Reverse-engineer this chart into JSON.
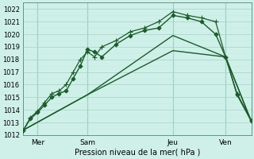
{
  "xlabel": "Pression niveau de la mer( hPa )",
  "background_color": "#cff0e8",
  "grid_color_major": "#aad8cc",
  "grid_color_minor": "#c4ece4",
  "line_color": "#1a5c2a",
  "vline_color": "#6aaa99",
  "xlim": [
    0,
    16
  ],
  "ylim": [
    1012,
    1022.5
  ],
  "yticks": [
    1012,
    1013,
    1014,
    1015,
    1016,
    1017,
    1018,
    1019,
    1020,
    1021,
    1022
  ],
  "xtick_labels": [
    "Mer",
    "Sam",
    "Jeu",
    "Ven"
  ],
  "xtick_positions": [
    1.0,
    4.5,
    10.5,
    14.2
  ],
  "vlines": [
    1.0,
    4.5,
    10.5,
    14.2
  ],
  "series": [
    {
      "x": [
        0,
        0.5,
        1.0,
        1.5,
        2.0,
        2.5,
        3.0,
        3.5,
        4.0,
        4.5,
        5.0,
        5.5,
        6.5,
        7.5,
        8.5,
        9.5,
        10.5,
        11.5,
        12.5,
        13.5,
        14.2,
        15.0,
        16.0
      ],
      "y": [
        1012.4,
        1013.3,
        1013.8,
        1014.4,
        1015.0,
        1015.3,
        1015.5,
        1016.5,
        1017.5,
        1018.8,
        1018.6,
        1018.2,
        1019.2,
        1019.9,
        1020.3,
        1020.5,
        1021.5,
        1021.3,
        1021.0,
        1020.0,
        1018.2,
        1015.2,
        1013.1
      ],
      "marker": "D",
      "markersize": 2.5,
      "lw": 1.0
    },
    {
      "x": [
        0,
        0.5,
        1.0,
        1.5,
        2.0,
        2.5,
        3.0,
        3.5,
        4.0,
        4.5,
        5.0,
        5.5,
        6.5,
        7.5,
        8.5,
        9.5,
        10.5,
        11.5,
        12.5,
        13.5,
        14.2,
        15.0,
        16.0
      ],
      "y": [
        1012.4,
        1013.4,
        1013.9,
        1014.6,
        1015.3,
        1015.5,
        1016.0,
        1017.0,
        1018.0,
        1018.6,
        1018.2,
        1019.0,
        1019.5,
        1020.2,
        1020.5,
        1021.0,
        1021.8,
        1021.5,
        1021.3,
        1021.0,
        1018.2,
        1015.3,
        1013.2
      ],
      "marker": "+",
      "markersize": 4,
      "lw": 0.9
    },
    {
      "x": [
        0,
        4.5,
        10.5,
        14.2,
        16.0
      ],
      "y": [
        1012.4,
        1015.2,
        1019.9,
        1018.2,
        1013.1
      ],
      "marker": null,
      "markersize": 0,
      "lw": 1.0
    },
    {
      "x": [
        0,
        4.5,
        10.5,
        14.2,
        16.0
      ],
      "y": [
        1012.4,
        1015.2,
        1018.7,
        1018.2,
        1013.1
      ],
      "marker": null,
      "markersize": 0,
      "lw": 1.0
    }
  ]
}
